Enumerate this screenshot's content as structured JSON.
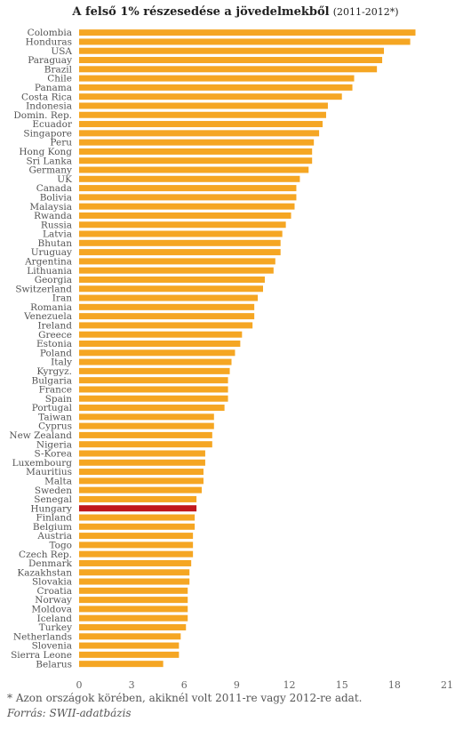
{
  "title": "A felső 1% részesedése a jövedelmekből",
  "subtitle": "(2011-2012*)",
  "footnote": "* Azon országok körében, akiknél volt 2011-re vagy 2012-re adat.",
  "source": "Forrás: SWII-adatbázis",
  "colors": {
    "bar": "#f5a623",
    "highlight": "#c0171d",
    "label": "#555555",
    "axis": "#666666"
  },
  "chart_data": {
    "type": "bar",
    "orientation": "horizontal",
    "highlight": "Hungary",
    "xlim": [
      0,
      21
    ],
    "xticks": [
      0,
      3,
      6,
      9,
      12,
      15,
      18,
      21
    ],
    "grid": false,
    "categories": [
      "Colombia",
      "Honduras",
      "USA",
      "Paraguay",
      "Brazil",
      "Chile",
      "Panama",
      "Costa Rica",
      "Indonesia",
      "Domin. Rep.",
      "Ecuador",
      "Singapore",
      "Peru",
      "Hong Kong",
      "Sri Lanka",
      "Germany",
      "UK",
      "Canada",
      "Bolivia",
      "Malaysia",
      "Rwanda",
      "Russia",
      "Latvia",
      "Bhutan",
      "Uruguay",
      "Argentina",
      "Lithuania",
      "Georgia",
      "Switzerland",
      "Iran",
      "Romania",
      "Venezuela",
      "Ireland",
      "Greece",
      "Estonia",
      "Poland",
      "Italy",
      "Kyrgyz.",
      "Bulgaria",
      "France",
      "Spain",
      "Portugal",
      "Taiwan",
      "Cyprus",
      "New Zealand",
      "Nigeria",
      "S-Korea",
      "Luxembourg",
      "Mauritius",
      "Malta",
      "Sweden",
      "Senegal",
      "Hungary",
      "Finland",
      "Belgium",
      "Austria",
      "Togo",
      "Czech Rep.",
      "Denmark",
      "Kazakhstan",
      "Slovakia",
      "Croatia",
      "Norway",
      "Moldova",
      "Iceland",
      "Turkey",
      "Netherlands",
      "Slovenia",
      "Sierra Leone",
      "Belarus"
    ],
    "values": [
      19.2,
      18.9,
      17.4,
      17.3,
      17.0,
      15.7,
      15.6,
      15.0,
      14.2,
      14.1,
      13.9,
      13.7,
      13.4,
      13.3,
      13.3,
      13.1,
      12.6,
      12.4,
      12.4,
      12.3,
      12.1,
      11.8,
      11.6,
      11.5,
      11.5,
      11.2,
      11.1,
      10.6,
      10.5,
      10.2,
      10.0,
      10.0,
      9.9,
      9.3,
      9.2,
      8.9,
      8.7,
      8.6,
      8.5,
      8.5,
      8.5,
      8.3,
      7.7,
      7.7,
      7.6,
      7.6,
      7.2,
      7.2,
      7.1,
      7.1,
      7.0,
      6.7,
      6.7,
      6.6,
      6.6,
      6.5,
      6.5,
      6.5,
      6.4,
      6.3,
      6.3,
      6.2,
      6.2,
      6.2,
      6.2,
      6.1,
      5.8,
      5.7,
      5.7,
      4.8
    ]
  }
}
